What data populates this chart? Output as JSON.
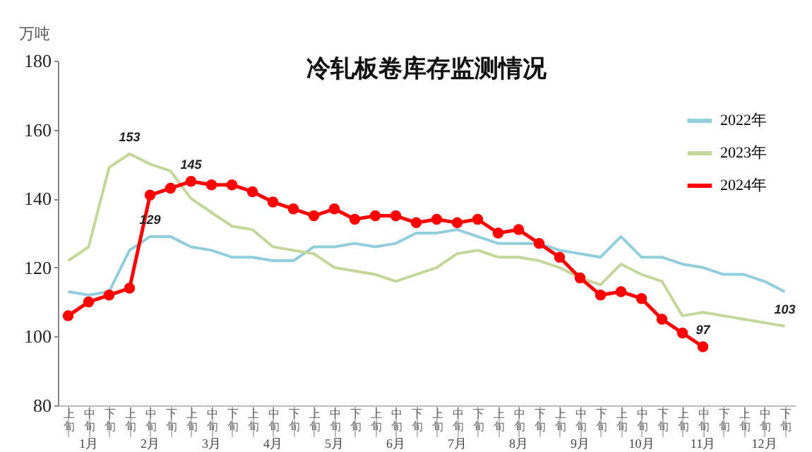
{
  "chart_data": {
    "type": "line",
    "title": "冷轧板卷库存监测情况",
    "ylabel": "万吨",
    "categories": [
      "上旬",
      "中旬",
      "下旬",
      "上旬",
      "中旬",
      "下旬",
      "上旬",
      "中旬",
      "下旬",
      "上旬",
      "中旬",
      "下旬",
      "上旬",
      "中旬",
      "下旬",
      "上旬",
      "中旬",
      "下旬",
      "上旬",
      "中旬",
      "下旬",
      "上旬",
      "中旬",
      "下旬",
      "上旬",
      "中旬",
      "下旬",
      "上旬",
      "中旬",
      "下旬",
      "上旬",
      "中旬",
      "下旬",
      "上旬",
      "中旬",
      "下旬"
    ],
    "annotations": [
      "1月",
      "2月",
      "3月",
      "4月",
      "5月",
      "6月",
      "7月",
      "8月",
      "9月",
      "10月",
      "11月",
      "12月"
    ],
    "series": [
      {
        "name": "2022年",
        "color": "#92cddc",
        "marker": "none",
        "values": [
          113,
          112,
          113,
          125,
          129,
          129,
          126,
          125,
          123,
          123,
          122,
          122,
          126,
          126,
          127,
          126,
          127,
          130,
          130,
          131,
          129,
          127,
          127,
          127,
          125,
          124,
          123,
          129,
          123,
          123,
          121,
          120,
          118,
          118,
          116,
          113
        ],
        "value_labels": [
          null,
          null,
          null,
          null,
          "129",
          null,
          null,
          null,
          null,
          null,
          null,
          null,
          null,
          null,
          null,
          null,
          null,
          null,
          null,
          null,
          null,
          null,
          null,
          null,
          null,
          null,
          null,
          null,
          null,
          null,
          null,
          null,
          null,
          null,
          null,
          null
        ]
      },
      {
        "name": "2023年",
        "color": "#c4d79b",
        "marker": "none",
        "values": [
          122,
          126,
          149,
          153,
          150,
          148,
          140,
          136,
          132,
          131,
          126,
          125,
          124,
          120,
          119,
          118,
          116,
          118,
          120,
          124,
          125,
          123,
          123,
          122,
          120,
          117,
          115,
          121,
          118,
          116,
          106,
          107,
          106,
          105,
          104,
          103
        ],
        "value_labels": [
          null,
          null,
          null,
          "153",
          null,
          null,
          null,
          null,
          null,
          null,
          null,
          null,
          null,
          null,
          null,
          null,
          null,
          null,
          null,
          null,
          null,
          null,
          null,
          null,
          null,
          null,
          null,
          null,
          null,
          null,
          null,
          null,
          null,
          null,
          null,
          "103"
        ]
      },
      {
        "name": "2024年",
        "color": "#ff0000",
        "marker": "circle",
        "values": [
          106,
          110,
          112,
          114,
          141,
          143,
          145,
          144,
          144,
          142,
          139,
          137,
          135,
          137,
          134,
          135,
          135,
          133,
          134,
          133,
          134,
          130,
          131,
          127,
          123,
          117,
          112,
          113,
          111,
          105,
          101,
          97,
          null,
          null,
          null,
          null
        ],
        "value_labels": [
          null,
          null,
          null,
          null,
          null,
          null,
          "145",
          null,
          null,
          null,
          null,
          null,
          null,
          null,
          null,
          null,
          null,
          null,
          null,
          null,
          null,
          null,
          null,
          null,
          null,
          null,
          null,
          null,
          null,
          null,
          null,
          "97",
          null,
          null,
          null,
          null
        ]
      }
    ],
    "ylim": [
      80,
      180
    ],
    "yticks": [
      80,
      100,
      120,
      140,
      160,
      180
    ],
    "legend": "top right"
  }
}
